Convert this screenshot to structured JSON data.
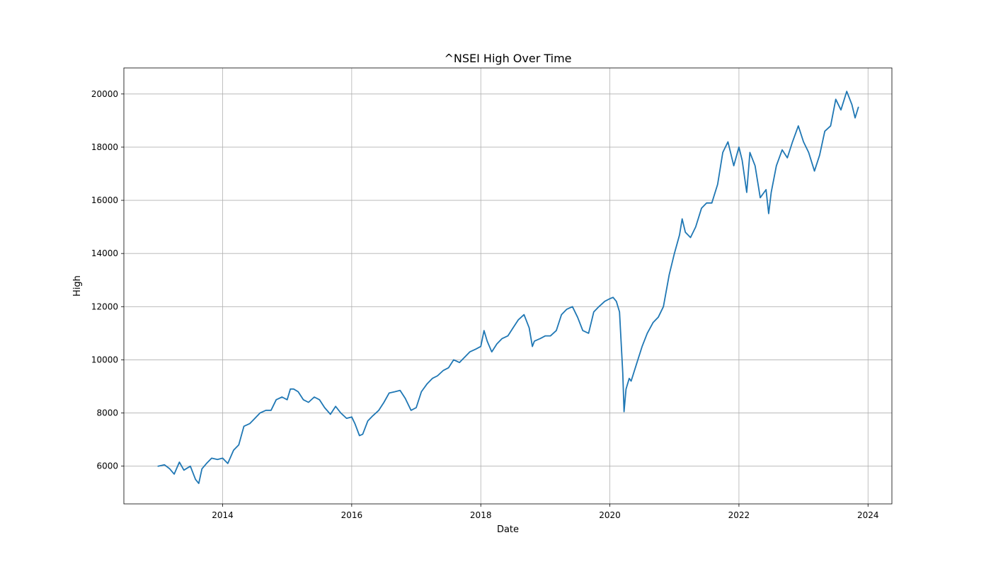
{
  "chart_data": {
    "type": "line",
    "title": "^NSEI High Over Time",
    "xlabel": "Date",
    "ylabel": "High",
    "xlim": [
      2012.47,
      2024.37
    ],
    "ylim": [
      4580,
      20980
    ],
    "x_ticks": [
      2014,
      2016,
      2018,
      2020,
      2022,
      2024
    ],
    "x_tick_labels": [
      "2014",
      "2016",
      "2018",
      "2020",
      "2022",
      "2024"
    ],
    "y_ticks": [
      6000,
      8000,
      10000,
      12000,
      14000,
      16000,
      18000,
      20000
    ],
    "y_tick_labels": [
      "6000",
      "8000",
      "10000",
      "12000",
      "14000",
      "16000",
      "18000",
      "20000"
    ],
    "grid": true,
    "line_color": "#1f77b4",
    "series": [
      {
        "x": [
          2013.0,
          2013.1,
          2013.18,
          2013.25,
          2013.33,
          2013.4,
          2013.5,
          2013.58,
          2013.63,
          2013.68,
          2013.75,
          2013.83,
          2013.92,
          2014.0,
          2014.08,
          2014.17,
          2014.25,
          2014.33,
          2014.42,
          2014.5,
          2014.58,
          2014.67,
          2014.75,
          2014.83,
          2014.92,
          2015.0,
          2015.05,
          2015.1,
          2015.17,
          2015.25,
          2015.33,
          2015.42,
          2015.5,
          2015.58,
          2015.67,
          2015.75,
          2015.83,
          2015.92,
          2016.0,
          2016.05,
          2016.12,
          2016.17,
          2016.25,
          2016.33,
          2016.42,
          2016.5,
          2016.58,
          2016.67,
          2016.75,
          2016.83,
          2016.92,
          2017.0,
          2017.08,
          2017.17,
          2017.25,
          2017.33,
          2017.42,
          2017.5,
          2017.58,
          2017.67,
          2017.75,
          2017.83,
          2017.92,
          2018.0,
          2018.05,
          2018.1,
          2018.17,
          2018.25,
          2018.33,
          2018.42,
          2018.5,
          2018.58,
          2018.67,
          2018.75,
          2018.8,
          2018.83,
          2018.92,
          2019.0,
          2019.08,
          2019.17,
          2019.25,
          2019.33,
          2019.42,
          2019.5,
          2019.58,
          2019.67,
          2019.75,
          2019.83,
          2019.92,
          2020.0,
          2020.05,
          2020.1,
          2020.15,
          2020.2,
          2020.22,
          2020.25,
          2020.3,
          2020.33,
          2020.42,
          2020.5,
          2020.58,
          2020.67,
          2020.75,
          2020.83,
          2020.92,
          2021.0,
          2021.08,
          2021.12,
          2021.17,
          2021.25,
          2021.33,
          2021.42,
          2021.5,
          2021.58,
          2021.67,
          2021.75,
          2021.83,
          2021.92,
          2022.0,
          2022.05,
          2022.12,
          2022.17,
          2022.25,
          2022.33,
          2022.42,
          2022.46,
          2022.5,
          2022.58,
          2022.67,
          2022.75,
          2022.83,
          2022.92,
          2023.0,
          2023.08,
          2023.17,
          2023.25,
          2023.33,
          2023.42,
          2023.5,
          2023.58,
          2023.67,
          2023.75,
          2023.8,
          2023.85
        ],
        "y": [
          6000,
          6050,
          5900,
          5700,
          6150,
          5850,
          6000,
          5500,
          5350,
          5900,
          6100,
          6300,
          6250,
          6300,
          6100,
          6600,
          6800,
          7500,
          7600,
          7800,
          8000,
          8100,
          8100,
          8500,
          8600,
          8500,
          8900,
          8900,
          8800,
          8500,
          8400,
          8600,
          8500,
          8200,
          7950,
          8250,
          8000,
          7800,
          7850,
          7600,
          7150,
          7200,
          7700,
          7900,
          8100,
          8400,
          8750,
          8800,
          8850,
          8550,
          8100,
          8200,
          8800,
          9100,
          9300,
          9400,
          9600,
          9700,
          10000,
          9900,
          10100,
          10300,
          10400,
          10500,
          11100,
          10700,
          10300,
          10600,
          10800,
          10900,
          11200,
          11500,
          11700,
          11200,
          10500,
          10700,
          10800,
          10900,
          10900,
          11100,
          11700,
          11900,
          12000,
          11600,
          11100,
          11000,
          11800,
          12000,
          12200,
          12300,
          12350,
          12200,
          11800,
          9500,
          8050,
          8900,
          9300,
          9200,
          9900,
          10500,
          11000,
          11400,
          11600,
          12000,
          13200,
          14000,
          14700,
          15300,
          14800,
          14600,
          15000,
          15700,
          15900,
          15900,
          16600,
          17800,
          18200,
          17300,
          18000,
          17500,
          16300,
          17800,
          17300,
          16100,
          16400,
          15500,
          16300,
          17300,
          17900,
          17600,
          18200,
          18800,
          18200,
          17800,
          17100,
          17700,
          18600,
          18800,
          19800,
          19400,
          20100,
          19600,
          19100,
          19500
        ]
      }
    ]
  }
}
